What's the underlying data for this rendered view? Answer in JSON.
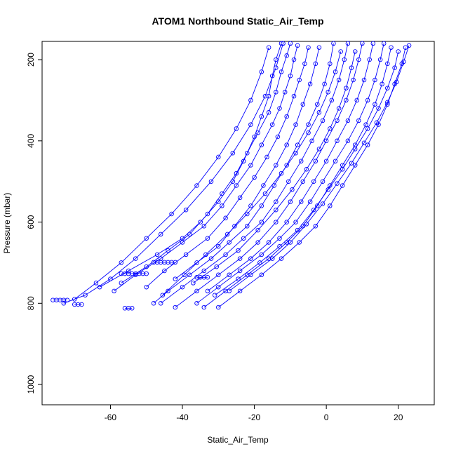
{
  "chart_data": {
    "type": "scatter",
    "title": "ATOM1 Northbound Static_Air_Temp",
    "xlabel": "Static_Air_Temp",
    "ylabel": "Pressure (mbar)",
    "xlim": [
      -79,
      30
    ],
    "ylim": [
      1050,
      155
    ],
    "y_reversed": true,
    "x_ticks": [
      -60,
      -40,
      -20,
      0,
      20
    ],
    "y_ticks": [
      200,
      400,
      600,
      800,
      1000
    ],
    "grid": false,
    "legend": "none",
    "marker": "open-circle",
    "color": "#0000ff",
    "series": [
      {
        "x": [
          -12.5,
          -14,
          -15,
          -16,
          -18,
          -20,
          -23,
          -26,
          -30,
          -35,
          -40,
          -47,
          -55,
          -63
        ],
        "y": [
          160,
          200,
          240,
          290,
          340,
          390,
          450,
          500,
          550,
          600,
          640,
          680,
          720,
          760
        ]
      },
      {
        "x": [
          -10,
          -11,
          -12.5,
          -14,
          -16,
          -19,
          -22,
          -25,
          -29,
          -33,
          -38,
          -44,
          -50,
          -57
        ],
        "y": [
          160,
          190,
          230,
          280,
          330,
          380,
          430,
          480,
          530,
          580,
          630,
          670,
          710,
          750
        ]
      },
      {
        "x": [
          -8,
          -9,
          -10,
          -11.5,
          -13,
          -15,
          -18,
          -21,
          -25,
          -29,
          -34,
          -40,
          -46,
          -53,
          -59
        ],
        "y": [
          165,
          200,
          240,
          280,
          320,
          360,
          410,
          460,
          510,
          560,
          610,
          650,
          690,
          730,
          770
        ]
      },
      {
        "x": [
          -5,
          -6,
          -7.5,
          -9,
          -11,
          -13.5,
          -16.5,
          -20,
          -24,
          -28,
          -33,
          -39,
          -45,
          -50
        ],
        "y": [
          170,
          210,
          250,
          290,
          340,
          390,
          440,
          490,
          540,
          590,
          640,
          680,
          720,
          760
        ]
      },
      {
        "x": [
          -2,
          -3,
          -4.5,
          -6.5,
          -8.5,
          -11,
          -14,
          -17.5,
          -21,
          -25.5,
          -30,
          -36,
          -42
        ],
        "y": [
          170,
          210,
          260,
          310,
          360,
          410,
          460,
          510,
          560,
          610,
          660,
          700,
          740
        ]
      },
      {
        "x": [
          2,
          1,
          -0.5,
          -2.5,
          -5,
          -8,
          -11,
          -14.5,
          -18,
          -22,
          -27,
          -32,
          -38,
          -44,
          -48
        ],
        "y": [
          160,
          210,
          260,
          310,
          360,
          410,
          460,
          510,
          560,
          610,
          650,
          690,
          730,
          770,
          800
        ]
      },
      {
        "x": [
          6,
          5,
          3.5,
          1.5,
          -1,
          -4,
          -7,
          -10.5,
          -14,
          -18,
          -23,
          -28,
          -34,
          -40,
          -46
        ],
        "y": [
          160,
          200,
          250,
          300,
          350,
          400,
          450,
          500,
          550,
          600,
          640,
          680,
          720,
          760,
          800
        ]
      },
      {
        "x": [
          10,
          9,
          7.5,
          5.5,
          3,
          0,
          -3,
          -6.5,
          -10,
          -14,
          -19,
          -24,
          -30,
          -36,
          -42
        ],
        "y": [
          160,
          200,
          250,
          300,
          350,
          400,
          450,
          500,
          550,
          600,
          650,
          690,
          730,
          770,
          810
        ]
      },
      {
        "x": [
          13,
          12,
          10.5,
          8.5,
          6,
          3,
          0,
          -3.5,
          -7,
          -11,
          -16,
          -21,
          -27,
          -33
        ],
        "y": [
          160,
          200,
          250,
          300,
          350,
          400,
          450,
          500,
          550,
          600,
          650,
          690,
          730,
          770
        ]
      },
      {
        "x": [
          16,
          15,
          13.5,
          11.5,
          9,
          6,
          2.5,
          -1,
          -4.5,
          -8.5,
          -13,
          -18,
          -24,
          -30,
          -36
        ],
        "y": [
          160,
          200,
          250,
          300,
          350,
          400,
          450,
          500,
          550,
          600,
          640,
          680,
          720,
          760,
          800
        ]
      },
      {
        "x": [
          18,
          17,
          15.5,
          13.5,
          11,
          8,
          4.5,
          1,
          -2.5,
          -6.5,
          -11,
          -16,
          -22,
          -28,
          -34
        ],
        "y": [
          170,
          210,
          260,
          310,
          360,
          410,
          460,
          510,
          560,
          610,
          650,
          690,
          730,
          770,
          810
        ]
      },
      {
        "x": [
          22,
          21,
          19,
          17,
          14.5,
          11.5,
          8,
          4.5,
          1,
          -3,
          -7.5,
          -12.5,
          -18,
          -24,
          -30
        ],
        "y": [
          170,
          210,
          260,
          310,
          360,
          410,
          460,
          510,
          560,
          610,
          650,
          690,
          730,
          770,
          810
        ]
      },
      {
        "x": [
          23,
          21.5,
          19.5,
          17,
          14,
          10.5,
          7,
          3,
          -1,
          -5.5,
          -10,
          -15,
          -21,
          -27
        ],
        "y": [
          165,
          205,
          255,
          305,
          355,
          405,
          455,
          505,
          555,
          605,
          650,
          690,
          730,
          770
        ]
      },
      {
        "x": [
          20,
          19,
          17,
          14.5,
          11.5,
          8,
          4.5,
          0.5,
          -3.5,
          -8,
          -13,
          -18.5,
          -24.5,
          -31
        ],
        "y": [
          180,
          220,
          270,
          320,
          370,
          420,
          470,
          520,
          570,
          620,
          660,
          700,
          740,
          780
        ]
      },
      {
        "x": [
          -16,
          -18,
          -21,
          -25,
          -30,
          -36,
          -43,
          -50,
          -57,
          -64,
          -70
        ],
        "y": [
          170,
          230,
          300,
          370,
          440,
          510,
          580,
          640,
          700,
          750,
          790
        ]
      },
      {
        "x": [
          -12,
          -14,
          -17,
          -21,
          -26,
          -32,
          -39,
          -46,
          -53,
          -60,
          -67,
          -73
        ],
        "y": [
          160,
          220,
          290,
          360,
          430,
          500,
          570,
          630,
          690,
          740,
          780,
          800
        ]
      },
      {
        "x": [
          4,
          2.5,
          0.5,
          -2,
          -5,
          -8.5,
          -12.5,
          -17,
          -22,
          -27.5,
          -33.5,
          -39.5,
          -45.5
        ],
        "y": [
          180,
          230,
          280,
          330,
          380,
          430,
          480,
          530,
          580,
          630,
          680,
          730,
          780
        ]
      },
      {
        "x": [
          8,
          7,
          5.5,
          3.5,
          1,
          -2,
          -5.5,
          -9.5,
          -14,
          -19,
          -24.5,
          -30.5,
          -37
        ],
        "y": [
          180,
          220,
          270,
          320,
          370,
          420,
          470,
          520,
          570,
          620,
          670,
          710,
          750
        ]
      },
      {
        "x": [
          -72,
          -73,
          -74,
          -75,
          -76
        ],
        "y": [
          792,
          792,
          792,
          792,
          792
        ]
      },
      {
        "x": [
          -57,
          -56,
          -55,
          -54,
          -53,
          -52,
          -51,
          -50
        ],
        "y": [
          727,
          727,
          727,
          727,
          727,
          727,
          727,
          727
        ]
      },
      {
        "x": [
          -48,
          -47,
          -46,
          -45,
          -44,
          -43,
          -42
        ],
        "y": [
          699,
          699,
          699,
          699,
          699,
          699,
          699
        ]
      },
      {
        "x": [
          -36,
          -35,
          -34,
          -33
        ],
        "y": [
          736,
          736,
          736,
          736
        ]
      },
      {
        "x": [
          -56,
          -55,
          -54
        ],
        "y": [
          812,
          812,
          812
        ]
      },
      {
        "x": [
          -70,
          -69,
          -68
        ],
        "y": [
          803,
          803,
          803
        ]
      }
    ]
  }
}
